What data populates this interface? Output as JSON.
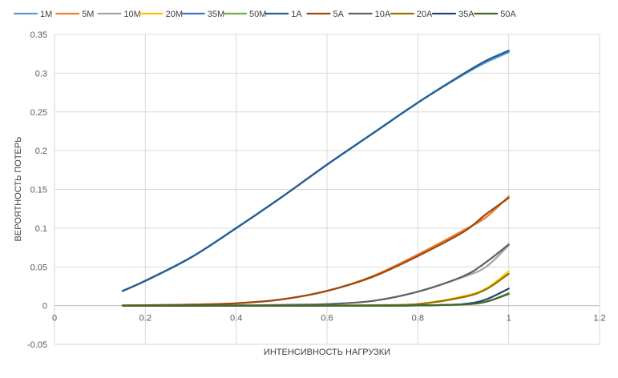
{
  "chart_data": {
    "type": "line",
    "xlabel": "ИНТЕНСИВНОСТЬ НАГРУЗКИ",
    "ylabel": "ВЕРОЯТНОСТЬ ПОТЕРЬ",
    "xlim": [
      0,
      1.2
    ],
    "ylim": [
      -0.05,
      0.35
    ],
    "x_ticks": [
      "0",
      "0.2",
      "0.4",
      "0.6",
      "0.8",
      "1",
      "1.2"
    ],
    "y_ticks": [
      "-0.05",
      "0",
      "0.05",
      "0.1",
      "0.15",
      "0.2",
      "0.25",
      "0.3",
      "0.35"
    ],
    "grid": true,
    "legend_position": "top",
    "x": [
      0.15,
      0.2,
      0.3,
      0.4,
      0.5,
      0.6,
      0.7,
      0.8,
      0.9,
      0.95,
      1.0
    ],
    "series": [
      {
        "name": "1M",
        "color": "#5B9BD5",
        "values": [
          0.019,
          0.032,
          0.062,
          0.1,
          0.14,
          0.182,
          0.222,
          0.262,
          0.298,
          0.314,
          0.327
        ]
      },
      {
        "name": "5M",
        "color": "#ED7D31",
        "values": [
          0.0002,
          0.0005,
          0.0013,
          0.003,
          0.008,
          0.019,
          0.038,
          0.066,
          0.097,
          0.114,
          0.141
        ]
      },
      {
        "name": "10M",
        "color": "#A5A5A5",
        "values": [
          0,
          0,
          0,
          0.0002,
          0.0008,
          0.002,
          0.006,
          0.018,
          0.037,
          0.05,
          0.078
        ]
      },
      {
        "name": "20M",
        "color": "#FFC000",
        "values": [
          0,
          0,
          0,
          0,
          0,
          0.0002,
          0.0005,
          0.002,
          0.012,
          0.022,
          0.044
        ]
      },
      {
        "name": "35M",
        "color": "#4472C4",
        "values": [
          0.019,
          0.032,
          0.062,
          0.1,
          0.14,
          0.182,
          0.222,
          0.262,
          0.299,
          0.316,
          0.329
        ]
      },
      {
        "name": "50M",
        "color": "#70AD47",
        "values": [
          0,
          0,
          0,
          0,
          0,
          0,
          0,
          0.0002,
          0.0015,
          0.005,
          0.016
        ]
      },
      {
        "name": "1A",
        "color": "#255E91",
        "values": [
          0.019,
          0.032,
          0.062,
          0.1,
          0.14,
          0.182,
          0.222,
          0.262,
          0.299,
          0.316,
          0.329
        ]
      },
      {
        "name": "5A",
        "color": "#9E480E",
        "values": [
          0.0002,
          0.0005,
          0.0013,
          0.003,
          0.008,
          0.019,
          0.037,
          0.064,
          0.095,
          0.118,
          0.139
        ]
      },
      {
        "name": "10A",
        "color": "#636363",
        "values": [
          0,
          0,
          0,
          0.0002,
          0.0008,
          0.002,
          0.006,
          0.018,
          0.038,
          0.056,
          0.079
        ]
      },
      {
        "name": "20A",
        "color": "#997300",
        "values": [
          0,
          0,
          0,
          0,
          0,
          0.0002,
          0.0005,
          0.002,
          0.011,
          0.021,
          0.041
        ]
      },
      {
        "name": "35A",
        "color": "#264478",
        "values": [
          0,
          0,
          0,
          0,
          0,
          0,
          0,
          0.0002,
          0.002,
          0.008,
          0.022
        ]
      },
      {
        "name": "50A",
        "color": "#43682B",
        "values": [
          0,
          0,
          0,
          0,
          0,
          0,
          0,
          0.0002,
          0.0015,
          0.005,
          0.015
        ]
      }
    ]
  }
}
